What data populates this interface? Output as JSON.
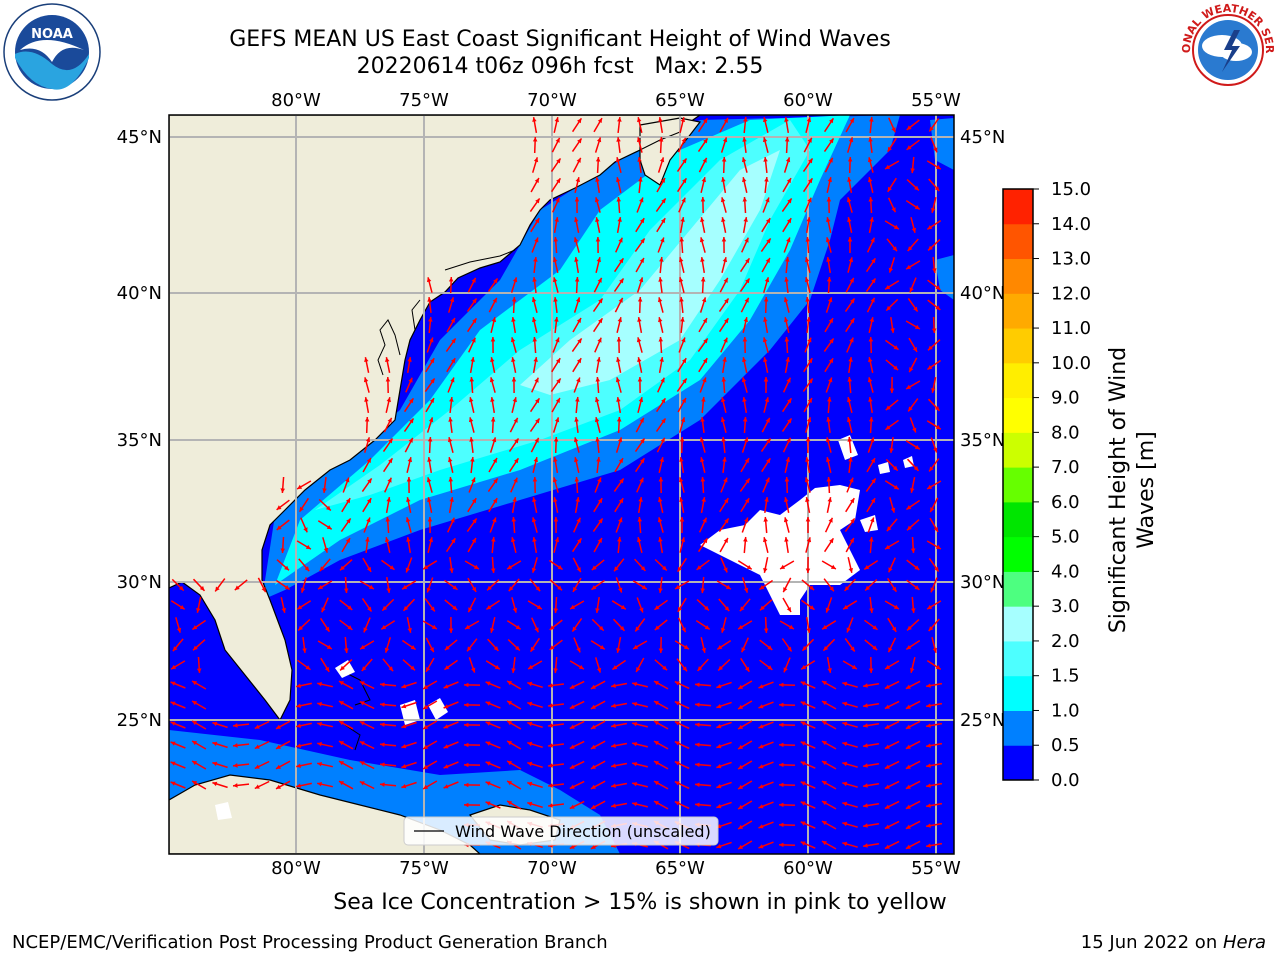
{
  "title": {
    "line1": "GEFS MEAN US East Coast Significant Height of Wind Waves",
    "line2": "20220614 t06z 096h fcst   Max: 2.55"
  },
  "logos": {
    "noaa": {
      "text": "NOAA",
      "ring": "NATIONAL OCEANIC AND ATMOSPHERIC ADMINISTRATION · U.S. DEPARTMENT OF COMMERCE"
    },
    "nws": {
      "ring": "NATIONAL WEATHER SERVICE"
    }
  },
  "map": {
    "lon_labels": [
      "80°W",
      "75°W",
      "70°W",
      "65°W",
      "60°W",
      "55°W"
    ],
    "lat_labels": [
      "45°N",
      "40°N",
      "35°N",
      "30°N",
      "25°N"
    ],
    "legend_label": "Wind Wave Direction (unscaled)",
    "colors": {
      "land": "#efedda",
      "level0": "#0000fe",
      "level1": "#0080ff",
      "level2": "#00ffff",
      "level3": "#4dffff",
      "level4": "#a6ffff",
      "arrow": "#ff0000",
      "grid": "#b4b4b4",
      "missing": "#ffffff"
    }
  },
  "colorbar": {
    "title_line1": "Significant Height of Wind",
    "title_line2": "Waves [m]",
    "ticks": [
      "0.0",
      "0.5",
      "1.0",
      "1.5",
      "2.0",
      "3.0",
      "4.0",
      "5.0",
      "6.0",
      "7.0",
      "8.0",
      "9.0",
      "10.0",
      "11.0",
      "12.0",
      "13.0",
      "14.0",
      "15.0"
    ],
    "colors": [
      "#0000ff",
      "#0080ff",
      "#00ffff",
      "#4dffff",
      "#a6ffff",
      "#4dff80",
      "#00ff00",
      "#00e600",
      "#66ff00",
      "#ccff00",
      "#ffff00",
      "#ffee00",
      "#ffcc00",
      "#ffaa00",
      "#ff8800",
      "#ff5500",
      "#ff2200"
    ]
  },
  "ice_note": "Sea Ice Concentration > 15% is shown in pink to yellow",
  "footer": {
    "left": "NCEP/EMC/Verification Post Processing Product Generation Branch",
    "date": "15 Jun 2022 on ",
    "host": "Hera"
  }
}
